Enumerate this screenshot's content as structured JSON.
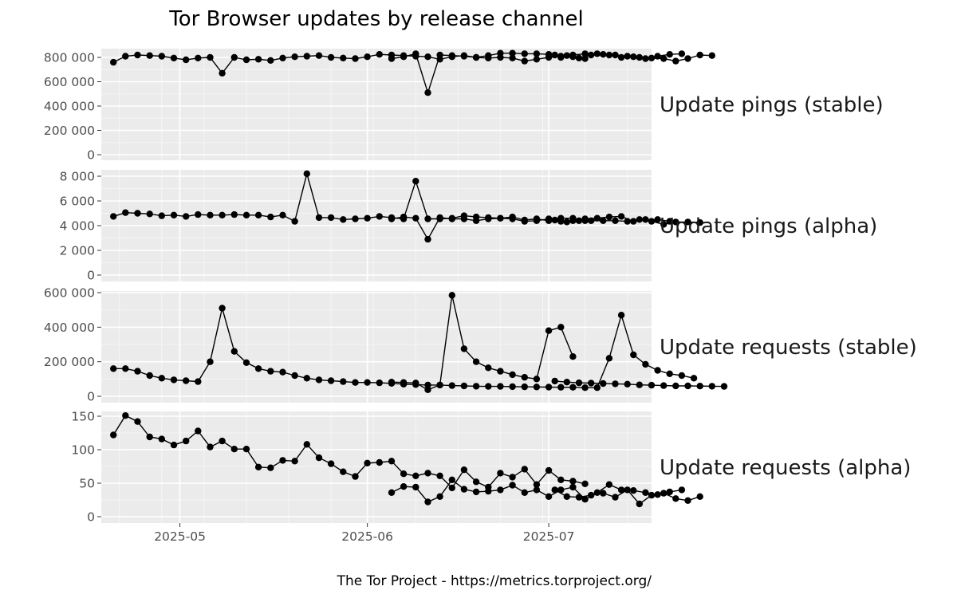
{
  "chart_data": {
    "type": "line",
    "title": "Tor Browser updates by release channel",
    "caption": "The Tor Project - https://metrics.torproject.org/",
    "x_type": "date",
    "xlim": [
      "2025-04-18",
      "2025-07-18"
    ],
    "x_ticks": [
      {
        "date": "2025-05-01",
        "label": "2025-05"
      },
      {
        "date": "2025-06-01",
        "label": "2025-06"
      },
      {
        "date": "2025-07-01",
        "label": "2025-07"
      }
    ],
    "grid": true,
    "series_points": "line with filled point markers",
    "series_color": "#000000",
    "panel_background": "#ebebeb",
    "panels": [
      {
        "name": "Update pings (stable)",
        "ylim": [
          0,
          830000
        ],
        "y_ticks": [
          0,
          200000,
          400000,
          600000,
          800000
        ],
        "y_tick_labels": [
          "0",
          "200 000",
          "400 000",
          "600 000",
          "800 000"
        ],
        "segments": [
          {
            "start": "2025-04-20",
            "values": [
              760000,
              810000,
              820000,
              815000,
              810000,
              795000,
              780000,
              795000,
              800000,
              670000,
              800000,
              780000,
              785000,
              775000,
              795000,
              805000,
              810000,
              815000,
              800000,
              795000,
              790000,
              805000,
              825000,
              820000,
              815000,
              810000,
              805000,
              785000,
              805000,
              815000,
              800000,
              795000,
              800000,
              795000,
              770000,
              785000,
              800000,
              810000,
              805000,
              790000
            ]
          },
          {
            "start": "2025-06-05",
            "values": [
              790000,
              805000,
              830000,
              510000,
              820000,
              815000,
              810000,
              800000,
              815000,
              835000,
              835000,
              830000,
              830000,
              825000,
              800000,
              820000,
              830000,
              830000,
              820000,
              800000,
              805000,
              790000,
              810000,
              825000,
              830000
            ]
          },
          {
            "start": "2025-07-02",
            "values": [
              820000,
              815000,
              795000,
              820000,
              825000,
              820000,
              810000,
              800000,
              795000,
              790000,
              770000,
              790000,
              820000,
              815000
            ]
          }
        ]
      },
      {
        "name": "Update pings (alpha)",
        "ylim": [
          0,
          8300
        ],
        "y_ticks": [
          0,
          2000,
          4000,
          6000,
          8000
        ],
        "y_tick_labels": [
          "0",
          "2 000",
          "4 000",
          "6 000",
          "8 000"
        ],
        "segments": [
          {
            "start": "2025-04-20",
            "values": [
              4750,
              5050,
              5000,
              4950,
              4800,
              4850,
              4750,
              4900,
              4850,
              4850,
              4900,
              4850,
              4850,
              4700,
              4850,
              4350,
              8200,
              4650,
              4650,
              4500,
              4550,
              4600,
              4750,
              4650,
              4550,
              7600,
              4550,
              4550,
              4600,
              4800,
              4700,
              4650,
              4600,
              4550,
              4350,
              4400,
              4550,
              4600,
              4600,
              4400
            ]
          },
          {
            "start": "2025-06-05",
            "values": [
              4550,
              4700,
              4600,
              2900,
              4650,
              4550,
              4550,
              4400,
              4550,
              4600,
              4700,
              4450,
              4550,
              4400,
              4350,
              4400,
              4550,
              4600,
              4700,
              4750,
              4350,
              4500,
              4500,
              4350
            ]
          },
          {
            "start": "2025-07-02",
            "values": [
              4450,
              4300,
              4400,
              4400,
              4400,
              4400,
              4350,
              4500,
              4350,
              4100,
              4300,
              4300,
              4250
            ]
          }
        ]
      },
      {
        "name": "Update requests (stable)",
        "ylim": [
          0,
          600000
        ],
        "y_ticks": [
          0,
          200000,
          400000,
          600000
        ],
        "y_tick_labels": [
          "0",
          "200 000",
          "400 000",
          "600 000"
        ],
        "segments": [
          {
            "start": "2025-04-20",
            "values": [
              160000,
              160000,
              145000,
              120000,
              105000,
              95000,
              90000,
              85000,
              200000,
              510000,
              260000,
              195000,
              160000,
              145000,
              140000,
              120000,
              105000,
              95000,
              90000,
              85000,
              80000,
              80000,
              78000,
              75000,
              70000,
              68000,
              65000,
              65000,
              585000,
              275000,
              200000,
              165000,
              145000,
              125000,
              110000,
              100000,
              380000,
              400000,
              230000
            ]
          },
          {
            "start": "2025-06-05",
            "values": [
              82000,
              80000,
              77000,
              38000,
              65000,
              62000,
              60000,
              58000,
              57000,
              57000,
              56000,
              55000,
              54000,
              53000,
              52000,
              52000,
              50000,
              50000,
              220000,
              470000,
              240000,
              185000,
              150000,
              130000,
              120000,
              105000
            ]
          },
          {
            "start": "2025-07-02",
            "values": [
              88000,
              82000,
              78000,
              76000,
              74000,
              72000,
              70000,
              66000,
              64000,
              62000,
              60000,
              60000,
              59000,
              58000,
              57000
            ]
          }
        ]
      },
      {
        "name": "Update requests (alpha)",
        "ylim": [
          0,
          158
        ],
        "y_ticks": [
          0,
          50,
          100,
          150
        ],
        "y_tick_labels": [
          "0",
          "50",
          "100",
          "150"
        ],
        "segments": [
          {
            "start": "2025-04-20",
            "values": [
              122,
              151,
              142,
              119,
              116,
              107,
              113,
              128,
              104,
              113,
              101,
              101,
              74,
              73,
              84,
              83,
              108,
              88,
              79,
              67,
              60,
              80,
              81,
              83,
              64,
              61,
              65,
              61,
              43,
              70,
              52,
              44,
              65,
              59,
              71,
              48,
              69,
              55,
              53,
              49
            ]
          },
          {
            "start": "2025-06-05",
            "values": [
              36,
              45,
              44,
              22,
              30,
              55,
              41,
              37,
              38,
              40,
              47,
              36,
              40,
              30,
              40,
              44,
              26,
              36,
              48,
              40,
              39,
              36,
              33,
              37,
              40
            ]
          },
          {
            "start": "2025-07-02",
            "values": [
              40,
              30,
              29,
              32,
              35,
              29,
              40,
              19,
              32,
              35,
              27,
              24,
              30
            ]
          }
        ]
      }
    ]
  }
}
